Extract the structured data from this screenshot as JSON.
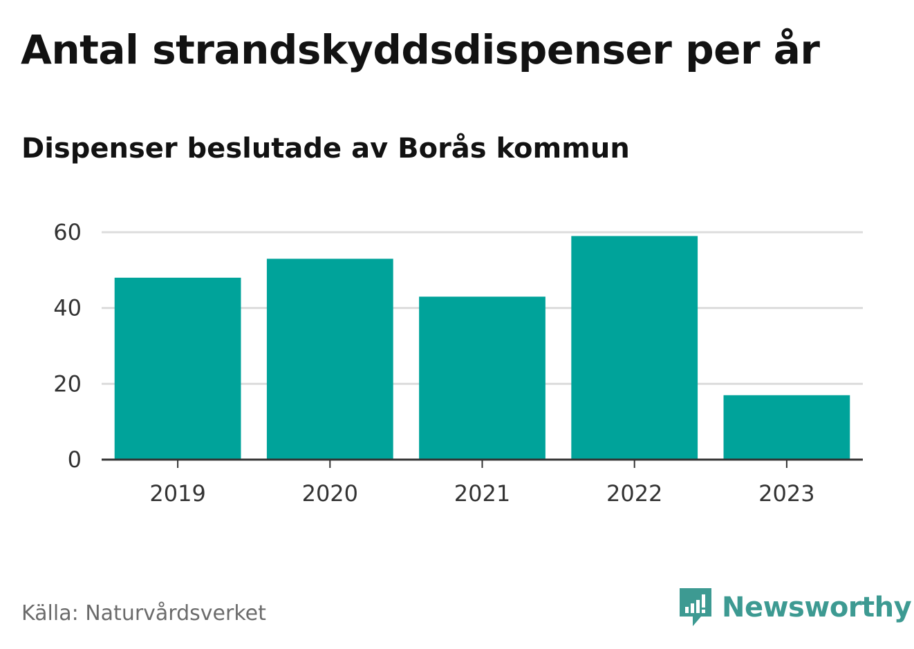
{
  "title": "Antal strandskyddsdispenser per år",
  "subtitle": "Dispenser beslutade av Borås kommun",
  "source": "Källa: Naturvårdsverket",
  "brand": {
    "name": "Newsworthy",
    "icon": "newsworthy-logo-icon",
    "color": "#3d9a92"
  },
  "chart_data": {
    "type": "bar",
    "categories": [
      "2019",
      "2020",
      "2021",
      "2022",
      "2023"
    ],
    "values": [
      48,
      53,
      43,
      59,
      17
    ],
    "ylim": [
      0,
      60
    ],
    "yticks": [
      0,
      20,
      40,
      60
    ],
    "grid": true,
    "bar_color": "#00a39a",
    "xlabel": "",
    "ylabel": ""
  }
}
